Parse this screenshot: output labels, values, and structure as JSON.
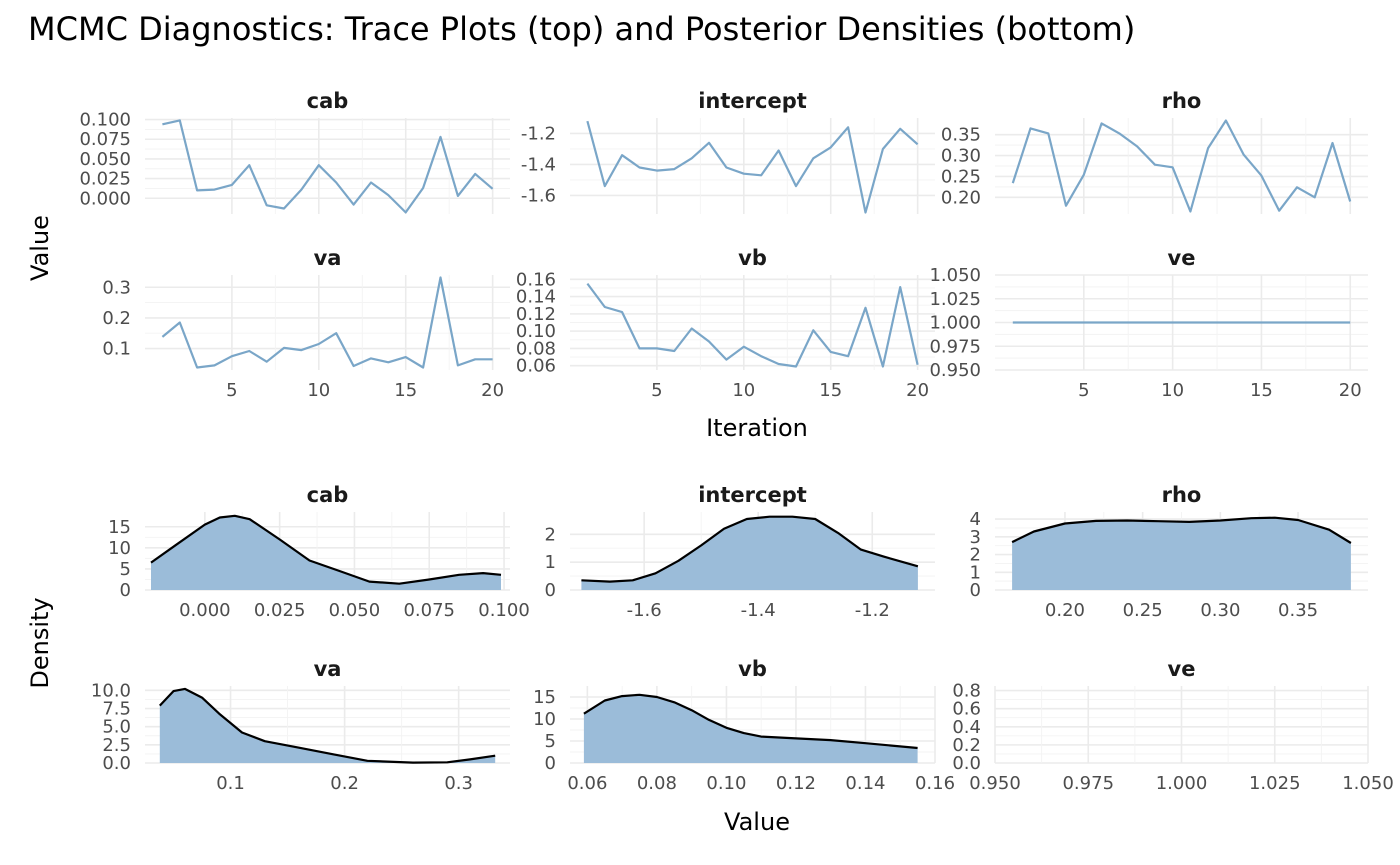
{
  "title": "MCMC Diagnostics: Trace Plots (top) and Posterior Densities (bottom)",
  "colors": {
    "trace": "#7aa6c8",
    "density_fill": "#9bbcd9",
    "density_line": "#000000",
    "grid": "#ebebeb"
  },
  "chart_data": [
    {
      "type": "line",
      "group": "trace",
      "xlabel": "Iteration",
      "ylabel": "Value",
      "grid": true,
      "x": [
        1,
        2,
        3,
        4,
        5,
        6,
        7,
        8,
        9,
        10,
        11,
        12,
        13,
        14,
        15,
        16,
        17,
        18,
        19,
        20
      ],
      "panels": [
        {
          "name": "cab",
          "ylim": [
            -0.02,
            0.102
          ],
          "xlim": [
            0,
            21
          ],
          "xticks": [],
          "xtick_labels": [],
          "yticks": [
            0,
            0.025,
            0.05,
            0.075,
            0.1
          ],
          "ytick_labels": [
            "0.000",
            "0.025",
            "0.050",
            "0.075",
            "0.100"
          ],
          "values": [
            0.094,
            0.099,
            0.01,
            0.011,
            0.017,
            0.042,
            -0.009,
            -0.013,
            0.011,
            0.042,
            0.02,
            -0.008,
            0.02,
            0.004,
            -0.018,
            0.013,
            0.078,
            0.003,
            0.031,
            0.012
          ]
        },
        {
          "name": "intercept",
          "ylim": [
            -1.72,
            -1.1
          ],
          "xlim": [
            0,
            21
          ],
          "xticks": [],
          "xtick_labels": [],
          "yticks": [
            -1.6,
            -1.4,
            -1.2
          ],
          "ytick_labels": [
            "-1.6",
            "-1.4",
            "-1.2"
          ],
          "values": [
            -1.12,
            -1.54,
            -1.34,
            -1.42,
            -1.44,
            -1.43,
            -1.36,
            -1.26,
            -1.42,
            -1.46,
            -1.47,
            -1.31,
            -1.54,
            -1.36,
            -1.29,
            -1.16,
            -1.71,
            -1.3,
            -1.17,
            -1.27
          ]
        },
        {
          "name": "rho",
          "ylim": [
            0.16,
            0.39
          ],
          "xlim": [
            0,
            21
          ],
          "xticks": [],
          "xtick_labels": [],
          "yticks": [
            0.2,
            0.25,
            0.3,
            0.35
          ],
          "ytick_labels": [
            "0.20",
            "0.25",
            "0.30",
            "0.35"
          ],
          "values": [
            0.234,
            0.365,
            0.353,
            0.18,
            0.254,
            0.377,
            0.353,
            0.322,
            0.278,
            0.272,
            0.166,
            0.318,
            0.384,
            0.302,
            0.252,
            0.168,
            0.224,
            0.2,
            0.33,
            0.19
          ]
        },
        {
          "name": "va",
          "ylim": [
            0.03,
            0.34
          ],
          "xlim": [
            0,
            21
          ],
          "xticks": [
            5,
            10,
            15,
            20
          ],
          "xtick_labels": [
            "5",
            "10",
            "15",
            "20"
          ],
          "yticks": [
            0.1,
            0.2,
            0.3
          ],
          "ytick_labels": [
            "0.1",
            "0.2",
            "0.3"
          ],
          "values": [
            0.138,
            0.185,
            0.038,
            0.045,
            0.075,
            0.092,
            0.057,
            0.102,
            0.095,
            0.115,
            0.15,
            0.043,
            0.068,
            0.055,
            0.072,
            0.038,
            0.332,
            0.045,
            0.065,
            0.065
          ]
        },
        {
          "name": "vb",
          "ylim": [
            0.055,
            0.165
          ],
          "xlim": [
            0,
            21
          ],
          "xticks": [
            5,
            10,
            15,
            20
          ],
          "xtick_labels": [
            "5",
            "10",
            "15",
            "20"
          ],
          "yticks": [
            0.06,
            0.08,
            0.1,
            0.12,
            0.14,
            0.16
          ],
          "ytick_labels": [
            "0.06",
            "0.08",
            "0.10",
            "0.12",
            "0.14",
            "0.16"
          ],
          "values": [
            0.155,
            0.128,
            0.122,
            0.08,
            0.08,
            0.077,
            0.103,
            0.088,
            0.067,
            0.082,
            0.071,
            0.062,
            0.059,
            0.101,
            0.076,
            0.071,
            0.127,
            0.059,
            0.151,
            0.061
          ]
        },
        {
          "name": "ve",
          "ylim": [
            0.95,
            1.05
          ],
          "xlim": [
            0,
            21
          ],
          "xticks": [
            5,
            10,
            15,
            20
          ],
          "xtick_labels": [
            "5",
            "10",
            "15",
            "20"
          ],
          "yticks": [
            0.95,
            0.975,
            1.0,
            1.025,
            1.05
          ],
          "ytick_labels": [
            "0.950",
            "0.975",
            "1.000",
            "1.025",
            "1.050"
          ],
          "values": [
            1,
            1,
            1,
            1,
            1,
            1,
            1,
            1,
            1,
            1,
            1,
            1,
            1,
            1,
            1,
            1,
            1,
            1,
            1,
            1
          ]
        }
      ]
    },
    {
      "type": "area",
      "group": "density",
      "xlabel": "Value",
      "ylabel": "Density",
      "grid": true,
      "panels": [
        {
          "name": "cab",
          "xlim": [
            -0.02,
            0.102
          ],
          "ylim": [
            0,
            18.5
          ],
          "xticks": [
            0,
            0.025,
            0.05,
            0.075,
            0.1
          ],
          "xtick_labels": [
            "0.000",
            "0.025",
            "0.050",
            "0.075",
            "0.100"
          ],
          "yticks": [
            0,
            5,
            10,
            15
          ],
          "ytick_labels": [
            "0",
            "5",
            "10",
            "15"
          ],
          "x": [
            -0.018,
            -0.01,
            0,
            0.005,
            0.01,
            0.015,
            0.025,
            0.035,
            0.045,
            0.055,
            0.065,
            0.075,
            0.085,
            0.093,
            0.099
          ],
          "y": [
            6.5,
            10.5,
            15.5,
            17.2,
            17.6,
            16.8,
            12,
            7,
            4.5,
            2,
            1.5,
            2.5,
            3.6,
            4.0,
            3.6
          ]
        },
        {
          "name": "intercept",
          "xlim": [
            -1.73,
            -1.09
          ],
          "ylim": [
            0,
            2.8
          ],
          "xticks": [
            -1.6,
            -1.4,
            -1.2
          ],
          "xtick_labels": [
            "-1.6",
            "-1.4",
            "-1.2"
          ],
          "yticks": [
            0,
            1,
            2
          ],
          "ytick_labels": [
            "0",
            "1",
            "2"
          ],
          "x": [
            -1.71,
            -1.66,
            -1.62,
            -1.58,
            -1.54,
            -1.5,
            -1.46,
            -1.42,
            -1.38,
            -1.34,
            -1.3,
            -1.26,
            -1.22,
            -1.18,
            -1.12
          ],
          "y": [
            0.35,
            0.3,
            0.35,
            0.6,
            1.05,
            1.6,
            2.2,
            2.55,
            2.63,
            2.63,
            2.55,
            2.05,
            1.45,
            1.2,
            0.85
          ]
        },
        {
          "name": "rho",
          "xlim": [
            0.155,
            0.395
          ],
          "ylim": [
            0,
            4.4
          ],
          "xticks": [
            0.2,
            0.25,
            0.3,
            0.35
          ],
          "xtick_labels": [
            "0.20",
            "0.25",
            "0.30",
            "0.35"
          ],
          "yticks": [
            0,
            1,
            2,
            3,
            4
          ],
          "ytick_labels": [
            "0",
            "1",
            "2",
            "3",
            "4"
          ],
          "x": [
            0.166,
            0.18,
            0.2,
            0.22,
            0.24,
            0.26,
            0.28,
            0.3,
            0.32,
            0.335,
            0.35,
            0.37,
            0.384
          ],
          "y": [
            2.7,
            3.3,
            3.75,
            3.9,
            3.92,
            3.88,
            3.84,
            3.92,
            4.05,
            4.08,
            3.95,
            3.4,
            2.65
          ]
        },
        {
          "name": "va",
          "xlim": [
            0.025,
            0.345
          ],
          "ylim": [
            0,
            10.6
          ],
          "xticks": [
            0.1,
            0.2,
            0.3
          ],
          "xtick_labels": [
            "0.1",
            "0.2",
            "0.3"
          ],
          "yticks": [
            0,
            2.5,
            5,
            7.5,
            10
          ],
          "ytick_labels": [
            "0.0",
            "2.5",
            "5.0",
            "7.5",
            "10.0"
          ],
          "x": [
            0.038,
            0.05,
            0.06,
            0.075,
            0.09,
            0.11,
            0.13,
            0.16,
            0.19,
            0.22,
            0.26,
            0.29,
            0.31,
            0.332
          ],
          "y": [
            7.9,
            9.9,
            10.2,
            9.0,
            6.8,
            4.2,
            3.0,
            2.1,
            1.2,
            0.3,
            0.05,
            0.1,
            0.5,
            1.0
          ]
        },
        {
          "name": "vb",
          "xlim": [
            0.055,
            0.16
          ],
          "ylim": [
            0,
            17.5
          ],
          "xticks": [
            0.06,
            0.08,
            0.1,
            0.12,
            0.14,
            0.16
          ],
          "xtick_labels": [
            "0.06",
            "0.08",
            "0.10",
            "0.12",
            "0.14",
            "0.16"
          ],
          "yticks": [
            0,
            5,
            10,
            15
          ],
          "ytick_labels": [
            "0",
            "5",
            "10",
            "15"
          ],
          "x": [
            0.059,
            0.065,
            0.07,
            0.075,
            0.08,
            0.085,
            0.09,
            0.095,
            0.1,
            0.105,
            0.11,
            0.12,
            0.13,
            0.14,
            0.155
          ],
          "y": [
            11.2,
            14.2,
            15.2,
            15.5,
            15.0,
            13.8,
            12.0,
            9.8,
            8.0,
            6.8,
            6.0,
            5.6,
            5.2,
            4.5,
            3.4
          ]
        },
        {
          "name": "ve",
          "xlim": [
            0.95,
            1.05
          ],
          "ylim": [
            0,
            0.85
          ],
          "xticks": [
            0.95,
            0.975,
            1.0,
            1.025,
            1.05
          ],
          "xtick_labels": [
            "0.950",
            "0.975",
            "1.000",
            "1.025",
            "1.050"
          ],
          "yticks": [
            0,
            0.2,
            0.4,
            0.6,
            0.8
          ],
          "ytick_labels": [
            "0.0",
            "0.2",
            "0.4",
            "0.6",
            "0.8"
          ],
          "x": [],
          "y": []
        }
      ]
    }
  ]
}
